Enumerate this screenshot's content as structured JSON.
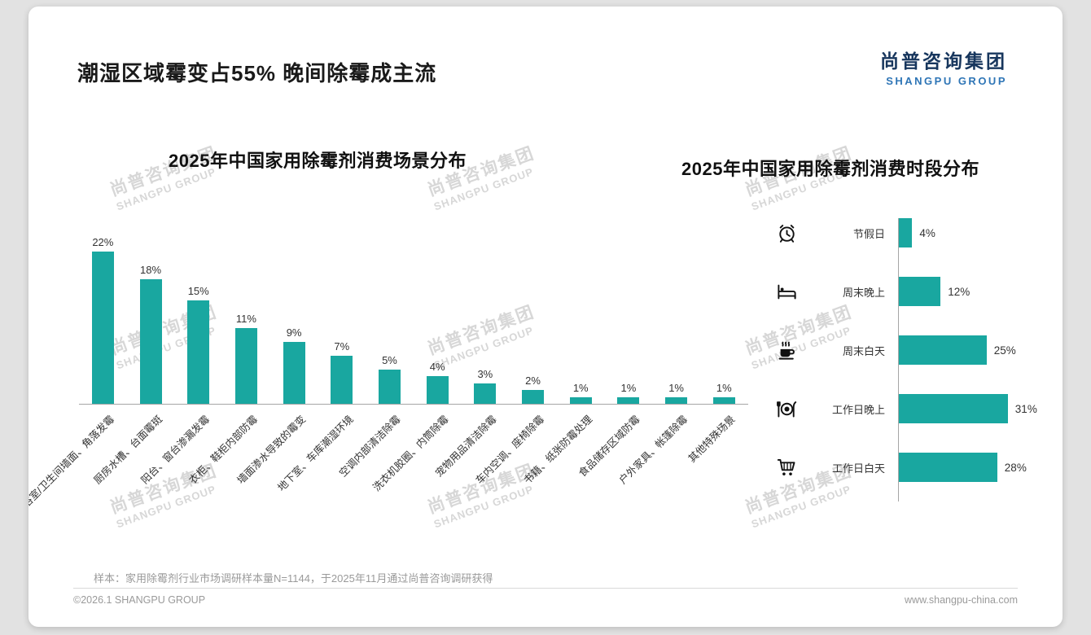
{
  "header": {
    "title": "潮湿区域霉变占55% 晚间除霉成主流",
    "logo_cn": "尚普咨询集团",
    "logo_en": "SHANGPU GROUP"
  },
  "watermark": {
    "cn": "尚普咨询集团",
    "en": "SHANGPU GROUP"
  },
  "colors": {
    "accent": "#19a7a0",
    "logo_blue": "#2e75b6"
  },
  "chart_data": [
    {
      "type": "bar",
      "orientation": "vertical",
      "title": "2025年中国家用除霉剂消费场景分布",
      "categories": [
        "浴室/卫生间墙面、角落发霉",
        "厨房水槽、台面霉斑",
        "阳台、窗台渗漏发霉",
        "衣柜、鞋柜内部防霉",
        "墙面渗水导致的霉变",
        "地下室、车库潮湿环境",
        "空调内部清洁除霉",
        "洗衣机胶圈、内筒除霉",
        "宠物用品清洁除霉",
        "车内空调、座椅除霉",
        "书籍、纸张防霉处理",
        "食品储存区域防霉",
        "户外家具、帐篷除霉",
        "其他特殊场景"
      ],
      "values": [
        22,
        18,
        15,
        11,
        9,
        7,
        5,
        4,
        3,
        2,
        1,
        1,
        1,
        1
      ],
      "unit": "%",
      "ylim": [
        0,
        25
      ],
      "bar_color": "#19a7a0",
      "grid": false,
      "legend": false
    },
    {
      "type": "bar",
      "orientation": "horizontal",
      "title": "2025年中国家用除霉剂消费时段分布",
      "categories": [
        "节假日",
        "周末晚上",
        "周末白天",
        "工作日晚上",
        "工作日白天"
      ],
      "values": [
        4,
        12,
        25,
        31,
        28
      ],
      "icons": [
        "alarm-clock",
        "bed",
        "coffee",
        "dining-plate",
        "shopping-cart"
      ],
      "unit": "%",
      "xlim": [
        0,
        35
      ],
      "bar_color": "#19a7a0",
      "grid": false,
      "legend": false
    }
  ],
  "footer": {
    "sample_note": "样本：家用除霉剂行业市场调研样本量N=1144，于2025年11月通过尚普咨询调研获得",
    "copyright": "©2026.1 SHANGPU GROUP",
    "website": "www.shangpu-china.com"
  }
}
